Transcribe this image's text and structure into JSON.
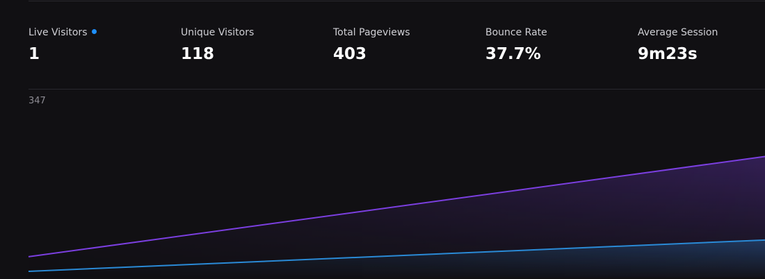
{
  "stats": {
    "live": {
      "label": "Live Visitors",
      "value": "1"
    },
    "unique": {
      "label": "Unique Visitors",
      "value": "118"
    },
    "pageviews": {
      "label": "Total Pageviews",
      "value": "403"
    },
    "bounce": {
      "label": "Bounce Rate",
      "value": "37.7%"
    },
    "session": {
      "label": "Average Session",
      "value": "9m23s"
    }
  },
  "colors": {
    "live_dot": "#1e8fff",
    "pageviews_line": "#7b3fe0",
    "visitors_line": "#2a8ad6",
    "background": "#111013"
  },
  "chart_data": {
    "type": "area",
    "y_max_label": "347",
    "ylim": [
      0,
      347
    ],
    "x": [
      0,
      1
    ],
    "series": [
      {
        "values": [
          40,
          232
        ],
        "color": "#7b3fe0"
      },
      {
        "values": [
          12,
          72
        ],
        "color": "#2a8ad6"
      }
    ]
  }
}
